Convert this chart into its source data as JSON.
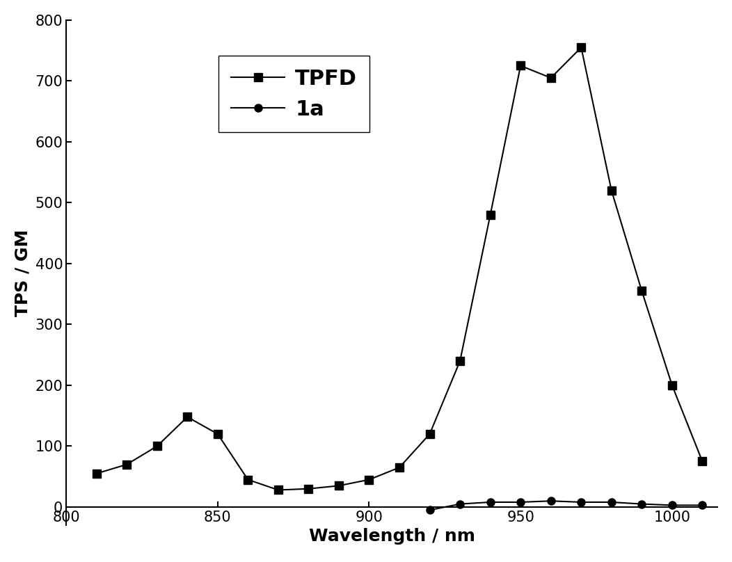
{
  "TPFD_x": [
    810,
    820,
    830,
    840,
    850,
    860,
    870,
    880,
    890,
    900,
    910,
    920,
    930,
    940,
    950,
    960,
    970,
    980,
    990,
    1000,
    1010
  ],
  "TPFD_y": [
    55,
    70,
    100,
    148,
    120,
    45,
    28,
    30,
    35,
    45,
    65,
    120,
    240,
    480,
    725,
    705,
    755,
    520,
    355,
    200,
    75
  ],
  "1a_x": [
    920,
    930,
    940,
    950,
    960,
    970,
    980,
    990,
    1000,
    1010
  ],
  "1a_y": [
    -5,
    5,
    8,
    8,
    10,
    8,
    8,
    5,
    3,
    3
  ],
  "xlabel": "Wavelength / nm",
  "ylabel": "TPS / GM",
  "xlim": [
    800,
    1015
  ],
  "ylim": [
    -30,
    800
  ],
  "yticks": [
    0,
    100,
    200,
    300,
    400,
    500,
    600,
    700,
    800
  ],
  "xticks": [
    800,
    850,
    900,
    950,
    1000
  ],
  "legend_TPFD": "TPFD",
  "legend_1a": "1a",
  "line_color": "#000000",
  "bg_color": "#ffffff",
  "marker_square": "s",
  "marker_circle": "o",
  "marker_size": 8,
  "line_width": 1.5,
  "label_fontsize": 18,
  "tick_fontsize": 15,
  "legend_fontsize": 22
}
